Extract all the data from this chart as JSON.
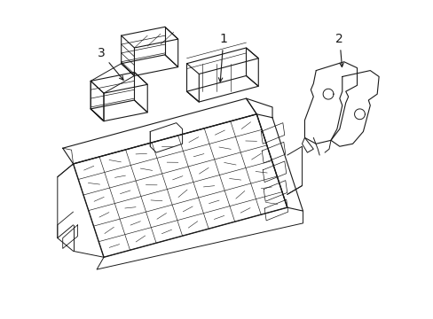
{
  "background_color": "#ffffff",
  "line_color": "#1a1a1a",
  "label_1": "1",
  "label_2": "2",
  "label_3": "3",
  "figsize": [
    4.89,
    3.6
  ],
  "dpi": 100
}
